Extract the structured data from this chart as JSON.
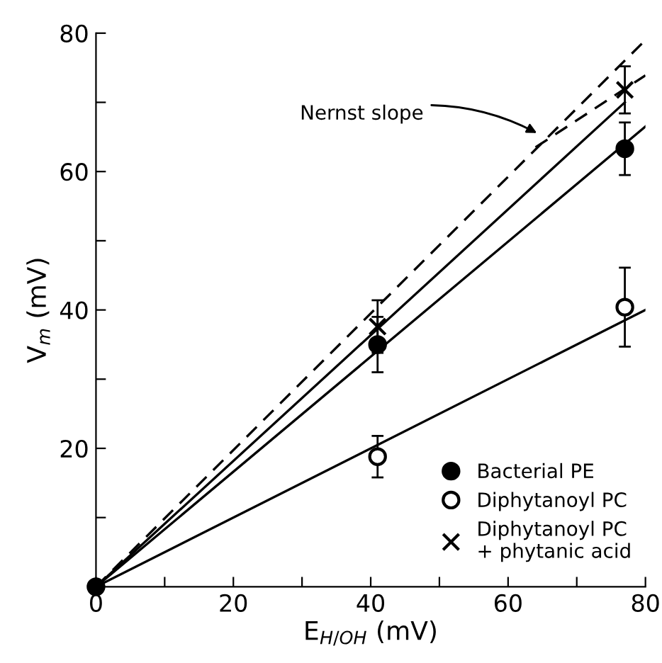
{
  "chart_data": {
    "type": "scatter",
    "xlabel": "E$_{H/OH}$ (mV)",
    "ylabel": "V$_{m}$ (mV)",
    "xlim": [
      0,
      80
    ],
    "ylim": [
      0,
      80
    ],
    "xticks": [
      0,
      {
        "value": 10,
        "label": null
      },
      20,
      {
        "value": 30,
        "label": null
      },
      40,
      {
        "value": 50,
        "label": null
      },
      60,
      {
        "value": 70,
        "label": null
      },
      80
    ],
    "yticks": [
      {
        "value": 10,
        "label": null
      },
      20,
      {
        "value": 30,
        "label": null
      },
      40,
      {
        "value": 50,
        "label": null
      },
      60,
      {
        "value": 70,
        "label": null
      },
      80
    ],
    "x": [
      0,
      41,
      77
    ],
    "series": [
      {
        "name": "Bacterial PE",
        "color": "#000000",
        "marker": "circle",
        "values": [
          0,
          35,
          63.3
        ],
        "errors": [
          null,
          4,
          3.8
        ]
      },
      {
        "name": "Diphytanoyl PC",
        "color": "#000000",
        "marker": "circle_open",
        "values": [
          null,
          18.8,
          40.4
        ],
        "errors": [
          null,
          3,
          5.7
        ]
      },
      {
        "name": "Diphytanoyl PC\n+ phytanic acid",
        "color": "#000000",
        "marker": "cross",
        "values": [
          null,
          37.6,
          71.8
        ],
        "errors": [
          null,
          3.8,
          3.4
        ]
      },
      {
        "type": "line",
        "color": "#000000",
        "line_style": "solid",
        "x": [
          0,
          80
        ],
        "values": [
          0,
          66.5
        ]
      },
      {
        "type": "line",
        "color": "#000000",
        "line_style": "solid",
        "x": [
          0,
          80
        ],
        "values": [
          0,
          40
        ]
      },
      {
        "type": "line",
        "color": "#000000",
        "line_style": "solid",
        "x": [
          0,
          77
        ],
        "values": [
          0,
          70
        ]
      },
      {
        "type": "line",
        "color": "#000000",
        "line_style": "dashed",
        "x": [
          0,
          80
        ],
        "values": [
          0,
          79
        ]
      },
      {
        "type": "line",
        "color": "#000000",
        "line_style": "dashed",
        "x": [
          64,
          80
        ],
        "values": [
          63.5,
          73.9
        ]
      }
    ],
    "annotations": [
      {
        "text": "Nernst slope",
        "x": 64.7,
        "y": 65.3
      }
    ],
    "legend": "bottom right",
    "grid": false
  }
}
